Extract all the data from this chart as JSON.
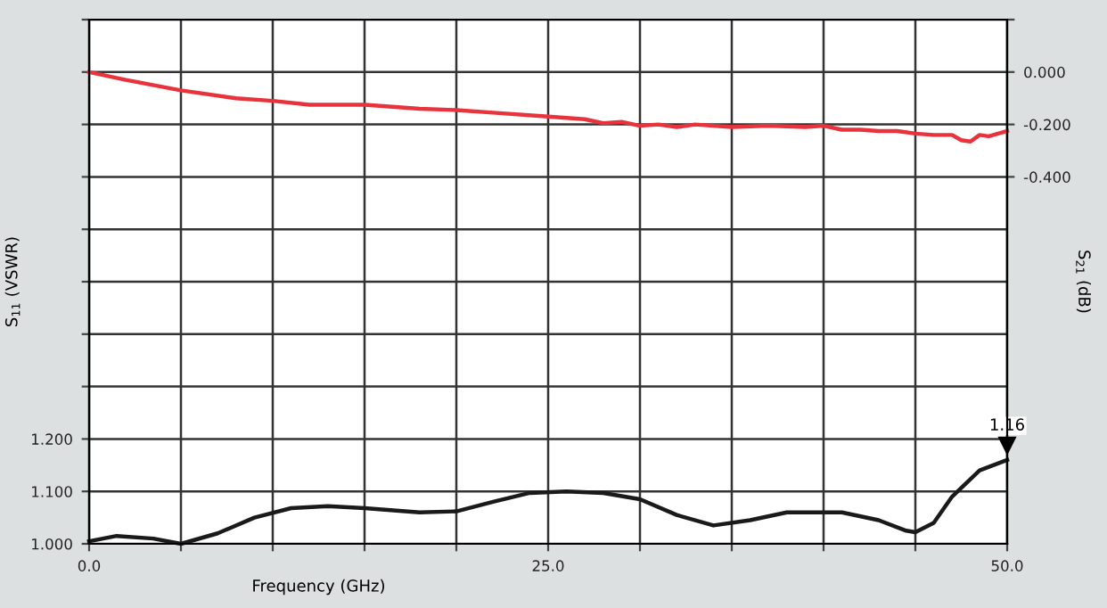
{
  "chart_data": {
    "type": "line",
    "xlabel": "Frequency (GHz)",
    "ylabel": "S$_{11}$ (VSWR)",
    "y2label": "S$_{21}$ (dB)",
    "xlim": [
      0,
      50
    ],
    "xticks": [
      {
        "value": 0,
        "label": "0.0"
      },
      {
        "value": 5,
        "label": null
      },
      {
        "value": 10,
        "label": null
      },
      {
        "value": 15,
        "label": null
      },
      {
        "value": 20,
        "label": null
      },
      {
        "value": 25,
        "label": "25.0"
      },
      {
        "value": 30,
        "label": null
      },
      {
        "value": 35,
        "label": null
      },
      {
        "value": 40,
        "label": null
      },
      {
        "value": 45,
        "label": null
      },
      {
        "value": 50,
        "label": "50.0"
      }
    ],
    "ylim": [
      1.0,
      2.0
    ],
    "yticks": [
      {
        "value": 1.0,
        "label": "1.000"
      },
      {
        "value": 1.1,
        "label": "1.100"
      },
      {
        "value": 1.2,
        "label": "1.200"
      },
      {
        "value": 1.3,
        "label": null
      },
      {
        "value": 1.4,
        "label": null
      },
      {
        "value": 1.5,
        "label": null
      },
      {
        "value": 1.6,
        "label": null
      },
      {
        "value": 1.7,
        "label": null
      },
      {
        "value": 1.8,
        "label": null
      },
      {
        "value": 1.9,
        "label": null
      },
      {
        "value": 2.0,
        "label": null
      }
    ],
    "y2lim": [
      -1.8,
      0.2
    ],
    "y2ticks": [
      {
        "value": 0.2,
        "label": null
      },
      {
        "value": 0,
        "label": "0.000"
      },
      {
        "value": -0.2,
        "label": "-0.200"
      },
      {
        "value": -0.4,
        "label": "-0.400"
      }
    ],
    "grid": true,
    "marker": "none",
    "line_style": "solid",
    "series": [
      {
        "color": "#e8323c",
        "axis": "y2",
        "x": [
          0,
          2,
          5,
          8,
          10,
          12,
          15,
          18,
          20,
          22,
          25,
          27,
          28,
          29,
          30,
          31,
          32,
          33,
          35,
          37,
          39,
          40,
          41,
          42,
          43,
          44,
          45,
          46,
          47,
          47.5,
          48,
          48.5,
          49,
          49.5,
          50
        ],
        "values": [
          0,
          -0.03,
          -0.07,
          -0.1,
          -0.11,
          -0.125,
          -0.125,
          -0.14,
          -0.145,
          -0.155,
          -0.17,
          -0.18,
          -0.195,
          -0.19,
          -0.205,
          -0.2,
          -0.21,
          -0.2,
          -0.21,
          -0.205,
          -0.21,
          -0.205,
          -0.22,
          -0.22,
          -0.225,
          -0.225,
          -0.235,
          -0.24,
          -0.24,
          -0.26,
          -0.265,
          -0.24,
          -0.245,
          -0.235,
          -0.225
        ]
      },
      {
        "color": "#1a1a1a",
        "x": [
          0,
          1.5,
          3.5,
          5,
          7,
          9,
          11,
          13,
          15,
          18,
          20,
          22,
          24,
          26,
          28,
          30,
          32,
          34,
          36,
          38,
          41,
          43,
          44.5,
          45,
          46,
          47,
          48.5,
          50
        ],
        "values": [
          1.005,
          1.015,
          1.01,
          1.0,
          1.02,
          1.05,
          1.068,
          1.072,
          1.068,
          1.06,
          1.062,
          1.08,
          1.097,
          1.1,
          1.097,
          1.085,
          1.055,
          1.035,
          1.045,
          1.06,
          1.06,
          1.045,
          1.025,
          1.022,
          1.04,
          1.09,
          1.14,
          1.16
        ]
      }
    ],
    "annotations": [
      {
        "text": "1.16",
        "x": 50,
        "y": 1.16
      }
    ]
  }
}
